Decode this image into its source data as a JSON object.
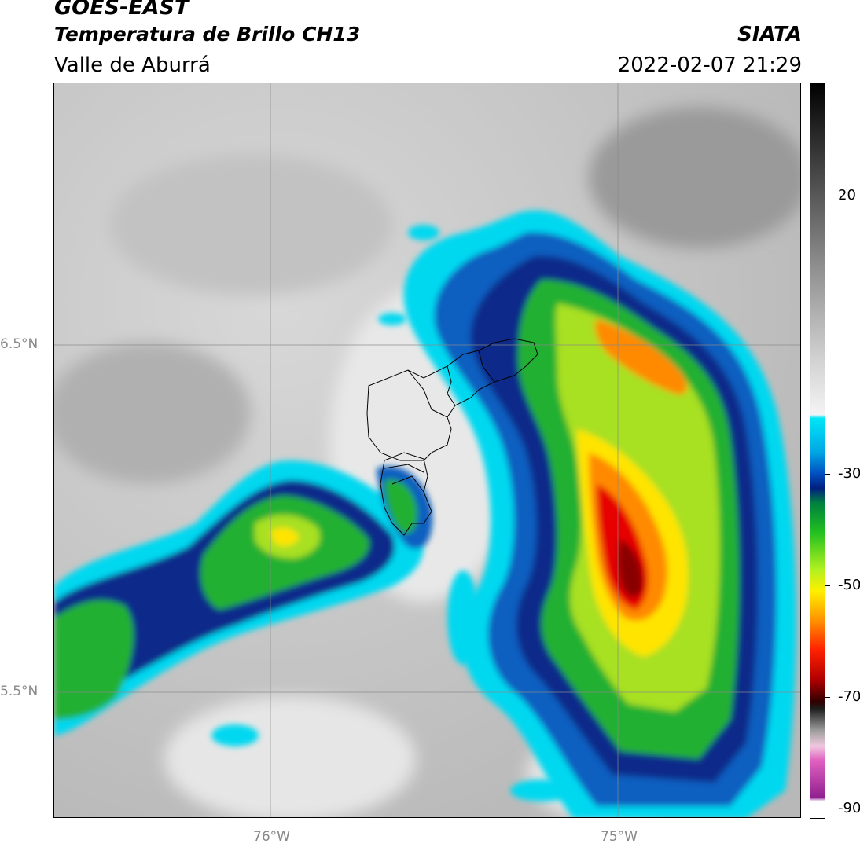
{
  "header": {
    "satellite": "GOES-EAST",
    "product": "Temperatura de Brillo CH13",
    "region": "Valle de Aburrá",
    "organization": "SIATA",
    "timestamp": "2022-02-07 21:29"
  },
  "map": {
    "lat_labels": [
      "6.5°N",
      "5.5°N"
    ],
    "lon_labels": [
      "76°W",
      "75°W"
    ],
    "colors": {
      "background_gray": "#c9c9c9",
      "cyan": "#00d8f0",
      "blue": "#0a5fc0",
      "navy": "#0a2a8a",
      "green": "#22b030",
      "lime": "#a8e020",
      "yellow": "#ffe400",
      "orange": "#ff8a00",
      "red": "#e60000",
      "darkred": "#8a0000"
    }
  },
  "colorbar": {
    "ticks": [
      "20",
      "-30",
      "-50",
      "-70",
      "-90"
    ]
  }
}
